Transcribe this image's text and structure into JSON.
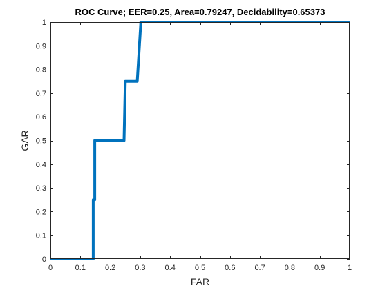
{
  "chart_data": {
    "type": "line",
    "title": "ROC Curve;   EER=0.25,   Area=0.79247,   Decidability=0.65373",
    "xlabel": "FAR",
    "ylabel": "GAR",
    "xlim": [
      0,
      1
    ],
    "ylim": [
      0,
      1
    ],
    "xticks": [
      "0",
      "0.1",
      "0.2",
      "0.3",
      "0.4",
      "0.5",
      "0.6",
      "0.7",
      "0.8",
      "0.9",
      "1"
    ],
    "yticks": [
      "0",
      "0.1",
      "0.2",
      "0.3",
      "0.4",
      "0.5",
      "0.6",
      "0.7",
      "0.8",
      "0.9",
      "1"
    ],
    "grid": false,
    "series": [
      {
        "color": "#0072BD",
        "x": [
          0,
          0.143,
          0.143,
          0.148,
          0.148,
          0.246,
          0.25,
          0.29,
          0.302,
          1.0
        ],
        "y": [
          0,
          0,
          0.25,
          0.25,
          0.5,
          0.5,
          0.75,
          0.75,
          1.0,
          1.0
        ]
      }
    ]
  }
}
